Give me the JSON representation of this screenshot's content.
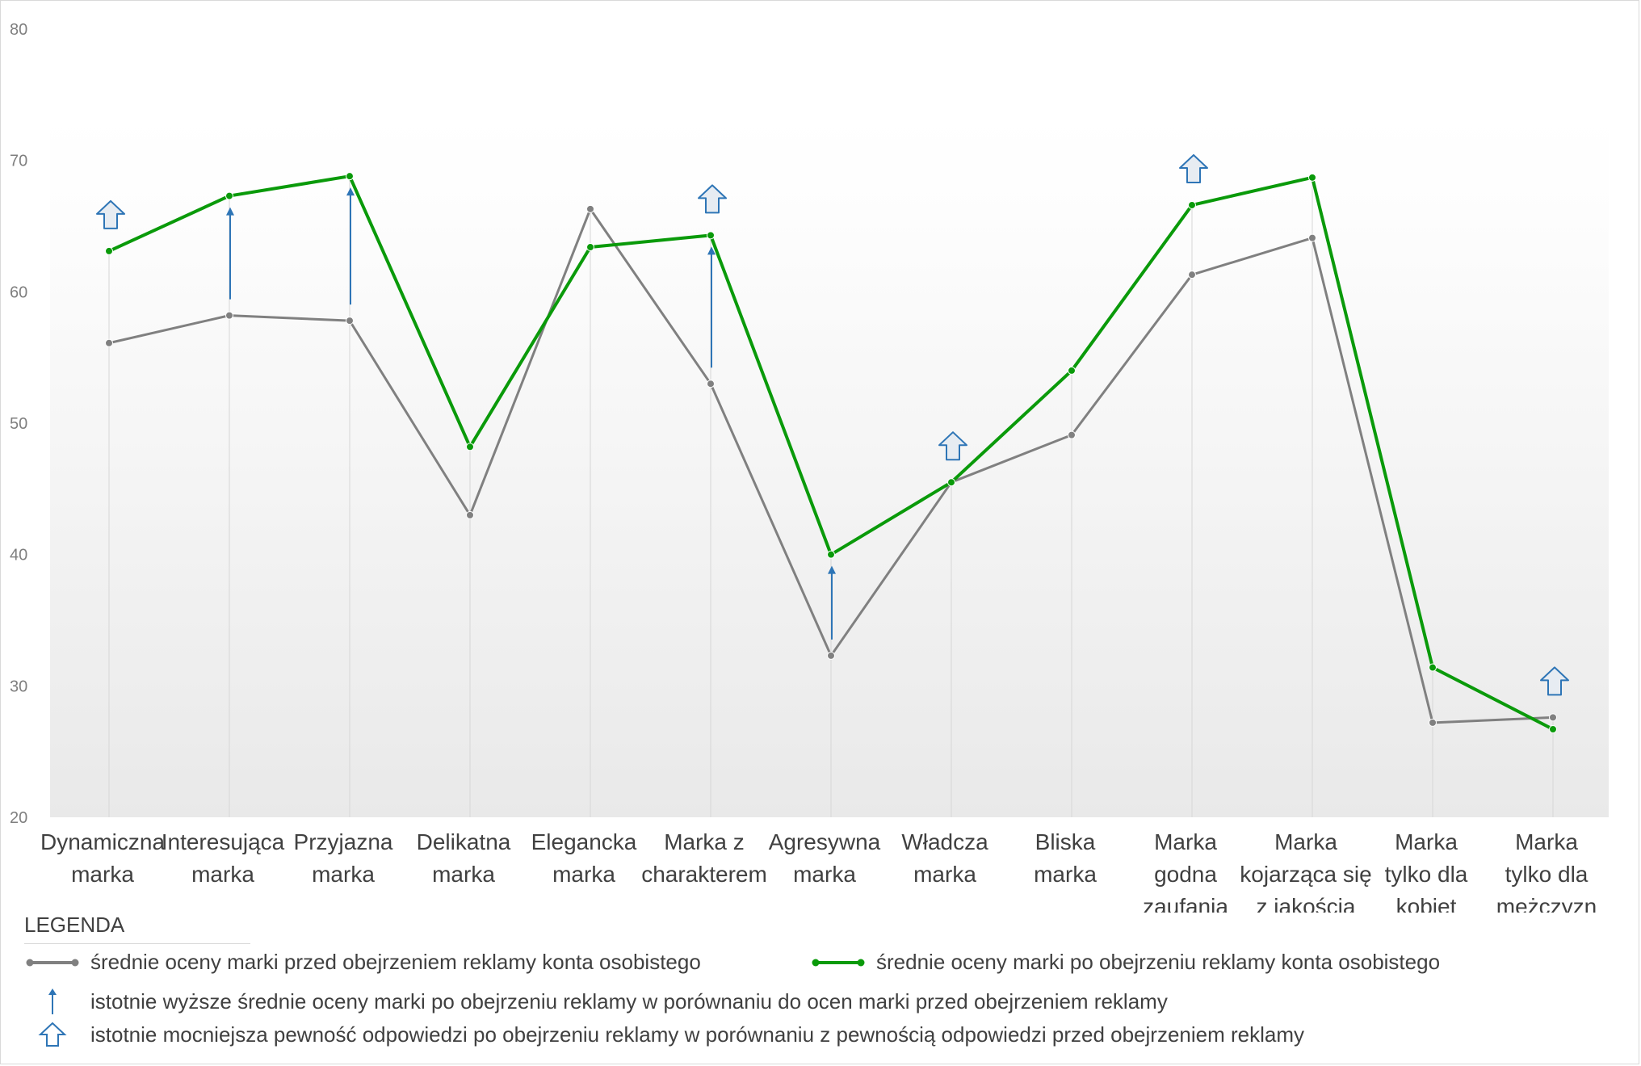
{
  "chart_data": {
    "type": "line",
    "categories": [
      [
        "Dynamiczna",
        "marka"
      ],
      [
        "Interesująca",
        "marka"
      ],
      [
        "Przyjazna",
        "marka"
      ],
      [
        "Delikatna",
        "marka"
      ],
      [
        "Elegancka",
        "marka"
      ],
      [
        "Marka z",
        "charakterem"
      ],
      [
        "Agresywna",
        "marka"
      ],
      [
        "Władcza",
        "marka"
      ],
      [
        "Bliska",
        "marka"
      ],
      [
        "Marka",
        "godna",
        "zaufania"
      ],
      [
        "Marka",
        "kojarząca się",
        "z jakością"
      ],
      [
        "Marka",
        "tylko dla",
        "kobiet"
      ],
      [
        "Marka",
        "tylko dla",
        "mężczyzn"
      ]
    ],
    "ylim": [
      20,
      80
    ],
    "yticks": [
      20,
      30,
      40,
      50,
      60,
      70,
      80
    ],
    "series": [
      {
        "name": "średnie oceny marki przed obejrzeniem reklamy konta osobistego",
        "color": "#808080",
        "values": [
          56.1,
          58.2,
          57.8,
          43.0,
          66.3,
          53.0,
          32.3,
          45.5,
          49.1,
          61.3,
          64.1,
          27.2,
          27.6
        ]
      },
      {
        "name": "średnie oceny marki po obejrzeniu reklamy konta osobistego",
        "color": "#0a9a0a",
        "values": [
          63.1,
          67.3,
          68.8,
          48.2,
          63.4,
          64.3,
          40.0,
          45.5,
          54.0,
          66.6,
          68.7,
          31.4,
          26.7
        ]
      }
    ],
    "significant_mean_arrows": [
      1,
      2,
      5,
      6
    ],
    "certainty_block_arrows": [
      0,
      5,
      7,
      9,
      12
    ],
    "grid": false,
    "legend_position": "bottom"
  },
  "legend": {
    "title": "LEGENDA",
    "before": "średnie oceny marki przed obejrzeniem reklamy konta osobistego",
    "after": "średnie oceny marki po obejrzeniu reklamy konta osobistego",
    "thin_arrow": "istotnie wyższe średnie oceny marki po obejrzeniu reklamy w porównaniu do ocen marki przed obejrzeniem reklamy",
    "block_arrow": "istotnie mocniejsza pewność odpowiedzi po obejrzeniu reklamy w porównaniu z pewnością odpowiedzi przed obejrzeniem reklamy"
  }
}
